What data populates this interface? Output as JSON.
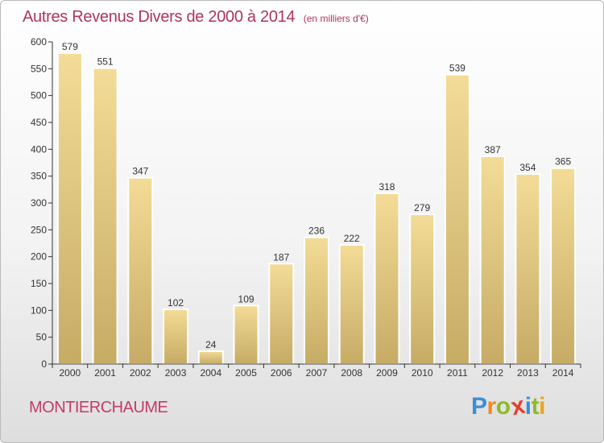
{
  "header": {
    "title": "Autres Revenus Divers de 2000 à 2014",
    "subtitle": "(en milliers d'€)"
  },
  "footer": {
    "commune": "MONTIERCHAUME",
    "logo": {
      "letters": [
        "P",
        "r",
        "o",
        "x",
        "i",
        "t",
        "i"
      ],
      "colors": [
        "#3a8fd6",
        "#f08a1c",
        "#8dbb2a",
        "#e0412a",
        "#3a8fd6",
        "#8dbb2a",
        "#f0a020"
      ]
    }
  },
  "chart_data": {
    "type": "bar",
    "title": "Autres Revenus Divers de 2000 à 2014",
    "subtitle": "(en milliers d'€)",
    "categories": [
      "2000",
      "2001",
      "2002",
      "2003",
      "2004",
      "2005",
      "2006",
      "2007",
      "2008",
      "2009",
      "2010",
      "2011",
      "2012",
      "2013",
      "2014"
    ],
    "values": [
      579,
      551,
      347,
      102,
      24,
      109,
      187,
      236,
      222,
      318,
      279,
      539,
      387,
      354,
      365
    ],
    "ylim": [
      0,
      600
    ],
    "yticks": [
      0,
      50,
      100,
      150,
      200,
      250,
      300,
      350,
      400,
      450,
      500,
      550,
      600
    ],
    "grid": false,
    "colors": {
      "bar_top": "#f3dc97",
      "bar_bottom": "#c6ab65",
      "axis": "#333333",
      "title": "#b0335f",
      "name": "#c23c68"
    }
  }
}
